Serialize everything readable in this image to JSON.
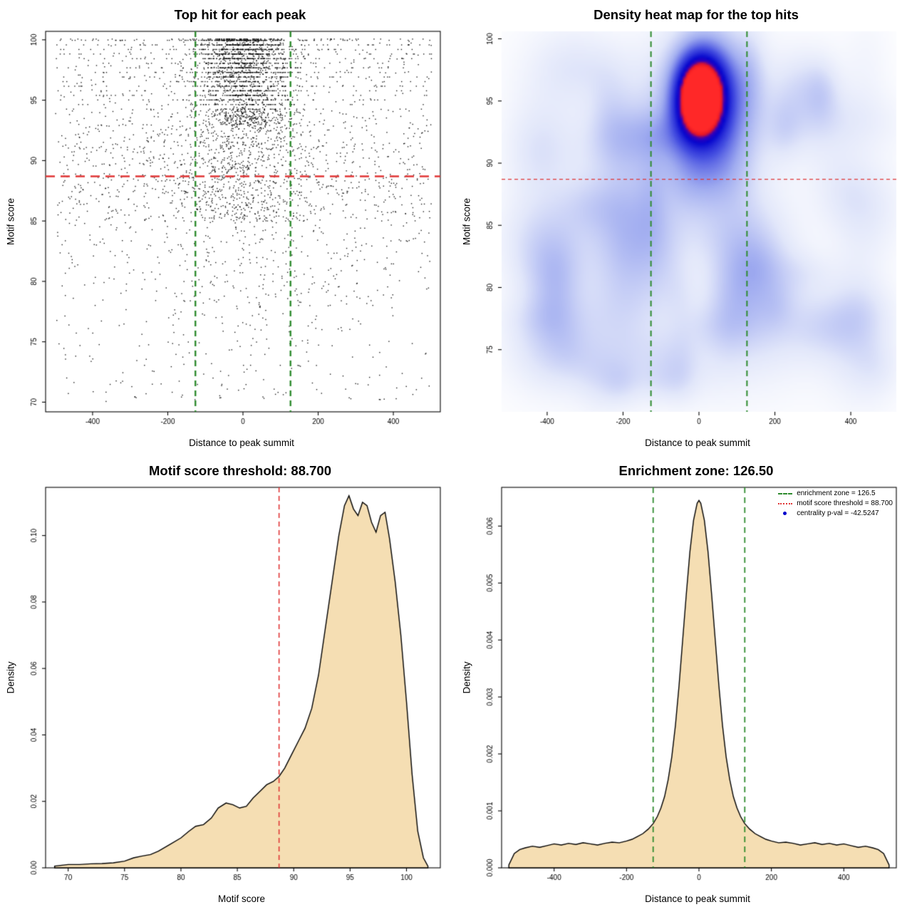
{
  "page": {
    "background": "#ffffff"
  },
  "chart_data": [
    {
      "id": "top-hits-scatter",
      "type": "scatter",
      "title": "Top hit for each peak",
      "xlabel": "Distance to peak summit",
      "ylabel": "Motif score",
      "xlim": [
        -525,
        525
      ],
      "ylim": [
        69.2,
        100.7
      ],
      "xticks": [
        -400,
        -200,
        0,
        200,
        400
      ],
      "xtick_labels": [
        "-400",
        "-200",
        "0",
        "200",
        "400"
      ],
      "yticks": [
        70,
        75,
        80,
        85,
        90,
        95,
        100
      ],
      "ytick_labels": [
        "70",
        "75",
        "80",
        "85",
        "90",
        "95",
        "100"
      ],
      "point_color": "#000000",
      "threshold_line": {
        "y": 88.7,
        "color": "#e03636",
        "style": "dashed"
      },
      "zone_lines": {
        "x": [
          -126.5,
          126.5
        ],
        "color": "#2e8b2e",
        "style": "dashed"
      },
      "points": {
        "n": 4800,
        "seed": 1234
      }
    },
    {
      "id": "top-hits-heatmap",
      "type": "heatmap",
      "title": "Density heat map for the top hits",
      "xlabel": "Distance to peak summit",
      "ylabel": "Motif score",
      "xlim": [
        -520,
        520
      ],
      "ylim": [
        70,
        100.6
      ],
      "xticks": [
        -400,
        -200,
        0,
        200,
        400
      ],
      "xtick_labels": [
        "-400",
        "-200",
        "0",
        "200",
        "400"
      ],
      "yticks": [
        75,
        80,
        85,
        90,
        95,
        100
      ],
      "ytick_labels": [
        "75",
        "80",
        "85",
        "90",
        "95",
        "100"
      ],
      "threshold_line": {
        "y": 88.7,
        "color": "#e03636",
        "style": "dashed"
      },
      "zone_lines": {
        "x": [
          -126.5,
          126.5
        ],
        "color": "#2e8b2e",
        "style": "dashed"
      },
      "base_wash": 0.018,
      "noise_seed": 77,
      "noise_blobs": 85,
      "components": [
        {
          "x": 2,
          "y": 96.2,
          "sx": 46,
          "sy": 2.3,
          "a": 1.0
        },
        {
          "x": 0,
          "y": 94.6,
          "sx": 40,
          "sy": 1.9,
          "a": 0.75
        },
        {
          "x": 0,
          "y": 95.4,
          "sx": 92,
          "sy": 4.2,
          "a": 0.4
        },
        {
          "x": 0,
          "y": 90.0,
          "sx": 75,
          "sy": 3.2,
          "a": 0.16
        }
      ],
      "colormap_stops": [
        [
          0.0,
          255,
          255,
          255
        ],
        [
          0.15,
          226,
          231,
          250
        ],
        [
          0.35,
          160,
          172,
          240
        ],
        [
          0.55,
          70,
          80,
          225
        ],
        [
          0.75,
          5,
          5,
          205
        ],
        [
          0.85,
          60,
          0,
          180
        ],
        [
          0.91,
          225,
          20,
          40
        ],
        [
          1.0,
          255,
          40,
          40
        ]
      ]
    },
    {
      "id": "motif-score-density",
      "type": "area",
      "title": "Motif score threshold: 88.700",
      "xlabel": "Motif score",
      "ylabel": "Density",
      "xlim": [
        68,
        103
      ],
      "ylim": [
        0,
        0.1145
      ],
      "xticks": [
        70,
        75,
        80,
        85,
        90,
        95,
        100
      ],
      "xtick_labels": [
        "70",
        "75",
        "80",
        "85",
        "90",
        "95",
        "100"
      ],
      "yticks": [
        0.0,
        0.02,
        0.04,
        0.06,
        0.08,
        0.1
      ],
      "ytick_labels": [
        "0.00",
        "0.02",
        "0.04",
        "0.06",
        "0.08",
        "0.10"
      ],
      "fill": "#f5deb3",
      "threshold": 88.7,
      "threshold_color": "#e03636",
      "curve": {
        "x": [
          68.8,
          70,
          71,
          72,
          73,
          74,
          75,
          75.8,
          76.5,
          77.3,
          78,
          79,
          80,
          80.7,
          81.3,
          82,
          82.7,
          83.3,
          84,
          84.6,
          85.2,
          85.8,
          86.4,
          87,
          87.6,
          88.2,
          88.7,
          89.2,
          89.8,
          90.4,
          91,
          91.6,
          92.2,
          92.8,
          93.4,
          94,
          94.5,
          94.9,
          95.3,
          95.7,
          96.1,
          96.5,
          96.9,
          97.3,
          97.7,
          98.1,
          98.5,
          99,
          99.5,
          100,
          100.5,
          101,
          101.5,
          101.9
        ],
        "y": [
          0.0005,
          0.001,
          0.001,
          0.0012,
          0.0013,
          0.0015,
          0.002,
          0.003,
          0.0035,
          0.004,
          0.005,
          0.007,
          0.009,
          0.011,
          0.0125,
          0.013,
          0.015,
          0.018,
          0.0195,
          0.019,
          0.018,
          0.0185,
          0.021,
          0.023,
          0.025,
          0.026,
          0.0275,
          0.03,
          0.034,
          0.038,
          0.042,
          0.048,
          0.058,
          0.072,
          0.086,
          0.1,
          0.109,
          0.112,
          0.108,
          0.106,
          0.11,
          0.109,
          0.104,
          0.101,
          0.106,
          0.107,
          0.099,
          0.086,
          0.07,
          0.05,
          0.028,
          0.011,
          0.003,
          0.0005
        ]
      }
    },
    {
      "id": "distance-density",
      "type": "area",
      "title": "Enrichment zone: 126.50",
      "xlabel": "Distance to peak summit",
      "ylabel": "Density",
      "xlim": [
        -545,
        545
      ],
      "ylim": [
        0,
        0.00668
      ],
      "xticks": [
        -400,
        -200,
        0,
        200,
        400
      ],
      "xtick_labels": [
        "-400",
        "-200",
        "0",
        "200",
        "400"
      ],
      "yticks": [
        0.0,
        0.001,
        0.002,
        0.003,
        0.004,
        0.005,
        0.006
      ],
      "ytick_labels": [
        "0.000",
        "0.001",
        "0.002",
        "0.003",
        "0.004",
        "0.005",
        "0.006"
      ],
      "fill": "#f5deb3",
      "zone": [
        -126.5,
        126.5
      ],
      "zone_color": "#2e8b2e",
      "curve": {
        "x": [
          -525,
          -510,
          -495,
          -480,
          -460,
          -440,
          -420,
          -400,
          -380,
          -360,
          -340,
          -320,
          -300,
          -280,
          -260,
          -240,
          -220,
          -200,
          -185,
          -170,
          -155,
          -140,
          -126,
          -115,
          -105,
          -95,
          -85,
          -75,
          -65,
          -55,
          -45,
          -35,
          -25,
          -15,
          -5,
          0,
          5,
          15,
          25,
          35,
          45,
          55,
          65,
          75,
          85,
          95,
          105,
          115,
          126,
          140,
          155,
          170,
          185,
          200,
          220,
          240,
          260,
          280,
          300,
          320,
          340,
          360,
          380,
          400,
          420,
          440,
          460,
          480,
          495,
          510,
          525
        ],
        "y": [
          5e-05,
          0.00025,
          0.00032,
          0.00035,
          0.00038,
          0.00036,
          0.00039,
          0.00042,
          0.0004,
          0.00043,
          0.00041,
          0.00044,
          0.00042,
          0.0004,
          0.00043,
          0.00045,
          0.00044,
          0.00047,
          0.0005,
          0.00055,
          0.0006,
          0.00068,
          0.00078,
          0.0009,
          0.00105,
          0.00125,
          0.00155,
          0.00195,
          0.0025,
          0.0032,
          0.004,
          0.0048,
          0.00555,
          0.0061,
          0.0064,
          0.00645,
          0.0064,
          0.0061,
          0.00555,
          0.0048,
          0.004,
          0.0032,
          0.0025,
          0.00195,
          0.00155,
          0.00125,
          0.00105,
          0.0009,
          0.00078,
          0.00068,
          0.0006,
          0.00055,
          0.0005,
          0.00047,
          0.00044,
          0.00045,
          0.00043,
          0.0004,
          0.00042,
          0.00044,
          0.00041,
          0.00043,
          0.0004,
          0.00042,
          0.00039,
          0.00036,
          0.00038,
          0.00035,
          0.00032,
          0.00025,
          5e-05
        ]
      },
      "legend": [
        {
          "label": "enrichment zone = 126.5",
          "marker": "green-dashed-line",
          "color": "#2e8b2e"
        },
        {
          "label": "motif score threshold = 88.700",
          "marker": "red-dotted-line",
          "color": "#e03636"
        },
        {
          "label": "centrality p-val = -42.5247",
          "marker": "blue-dot",
          "color": "#0000cc"
        }
      ]
    }
  ]
}
